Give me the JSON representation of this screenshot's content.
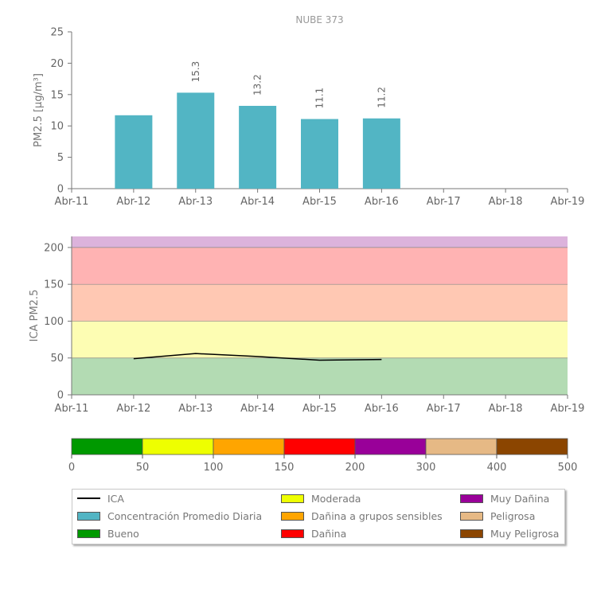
{
  "chart_data": [
    {
      "type": "bar",
      "title": "NUBE 373",
      "ylabel": "PM2.5 [μg/m³]",
      "ylim": [
        0,
        25
      ],
      "yticks": [
        "0",
        "5",
        "10",
        "15",
        "20",
        "25"
      ],
      "x_tick_labels": [
        "Abr-11",
        "Abr-12",
        "Abr-13",
        "Abr-14",
        "Abr-15",
        "Abr-16",
        "Abr-17",
        "Abr-18",
        "Abr-19"
      ],
      "categories": [
        "Abr-12",
        "Abr-13",
        "Abr-14",
        "Abr-15",
        "Abr-16"
      ],
      "values": [
        11.7,
        15.3,
        13.2,
        11.1,
        11.2
      ],
      "data_labels": [
        "",
        "15.3",
        "13.2",
        "11.1",
        "11.2"
      ],
      "bar_color": "#52b5c4",
      "grid": false
    },
    {
      "type": "line",
      "ylabel": "ICA PM2.5",
      "ylim": [
        0,
        215
      ],
      "yticks": [
        "0",
        "50",
        "100",
        "150",
        "200"
      ],
      "x_tick_labels": [
        "Abr-11",
        "Abr-12",
        "Abr-13",
        "Abr-14",
        "Abr-15",
        "Abr-16",
        "Abr-17",
        "Abr-18",
        "Abr-19"
      ],
      "series": [
        {
          "name": "ICA",
          "x": [
            "Abr-12",
            "Abr-13",
            "Abr-14",
            "Abr-15",
            "Abr-16"
          ],
          "values": [
            49,
            56,
            52,
            47,
            48
          ],
          "color": "#000000"
        }
      ],
      "bands": [
        {
          "from": 0,
          "to": 50,
          "color": "#b3dbb3"
        },
        {
          "from": 50,
          "to": 100,
          "color": "#fdfdb3"
        },
        {
          "from": 100,
          "to": 150,
          "color": "#ffc8b3"
        },
        {
          "from": 150,
          "to": 200,
          "color": "#ffb3b3"
        },
        {
          "from": 200,
          "to": 215,
          "color": "#dcb3dc"
        }
      ]
    },
    {
      "type": "color-scale",
      "ticks": [
        "0",
        "50",
        "100",
        "150",
        "200",
        "300",
        "400",
        "500"
      ],
      "colors": [
        "#009900",
        "#eeff00",
        "#ffa500",
        "#ff0000",
        "#990099",
        "#e6b985",
        "#8b4500"
      ]
    }
  ],
  "legend": [
    {
      "label": "ICA",
      "kind": "line",
      "color": "#000000"
    },
    {
      "label": "Concentración Promedio Diaria",
      "kind": "box",
      "color": "#52b5c4"
    },
    {
      "label": "Bueno",
      "kind": "box",
      "color": "#009900"
    },
    {
      "label": "Moderada",
      "kind": "box",
      "color": "#eeff00"
    },
    {
      "label": "Dañina a grupos sensibles",
      "kind": "box",
      "color": "#ffa500"
    },
    {
      "label": "Dañina",
      "kind": "box",
      "color": "#ff0000"
    },
    {
      "label": "Muy Dañina",
      "kind": "box",
      "color": "#990099"
    },
    {
      "label": "Peligrosa",
      "kind": "box",
      "color": "#e6b985"
    },
    {
      "label": "Muy Peligrosa",
      "kind": "box",
      "color": "#8b4500"
    }
  ]
}
